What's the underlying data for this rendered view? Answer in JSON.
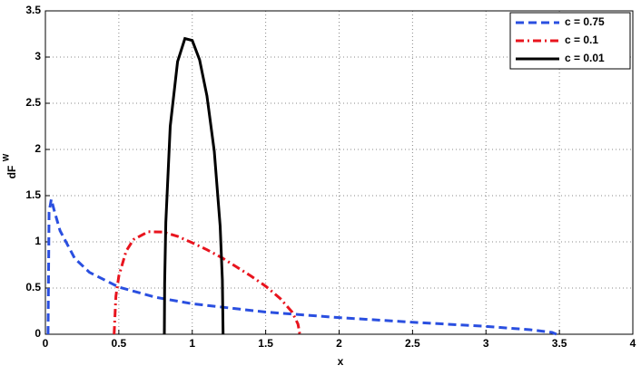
{
  "chart_data": {
    "type": "line",
    "xlabel": "x",
    "ylabel": "dF",
    "ylabel_superscript": "W",
    "xlim": [
      0,
      4
    ],
    "ylim": [
      0,
      3.5
    ],
    "xticks": [
      0,
      0.5,
      1,
      1.5,
      2,
      2.5,
      3,
      3.5,
      4
    ],
    "yticks": [
      0,
      0.5,
      1,
      1.5,
      2,
      2.5,
      3,
      3.5
    ],
    "grid": true,
    "legend": "upper right",
    "series": [
      {
        "name": "c = 0.75",
        "color": "#2a4fe0",
        "style": "dashed",
        "x": [
          0.018,
          0.025,
          0.04,
          0.06,
          0.1,
          0.2,
          0.3,
          0.5,
          0.75,
          1,
          1.5,
          2,
          2.5,
          3,
          3.3,
          3.45,
          3.48
        ],
        "values": [
          0,
          1.32,
          1.46,
          1.34,
          1.12,
          0.82,
          0.67,
          0.51,
          0.4,
          0.33,
          0.24,
          0.18,
          0.13,
          0.085,
          0.049,
          0.02,
          0
        ]
      },
      {
        "name": "c = 0.1",
        "color": "#e8141e",
        "style": "dashdot",
        "x": [
          0.468,
          0.48,
          0.5,
          0.55,
          0.6,
          0.7,
          0.8,
          0.9,
          1.0,
          1.1,
          1.2,
          1.3,
          1.4,
          1.5,
          1.6,
          1.68,
          1.72,
          1.732
        ],
        "values": [
          0,
          0.41,
          0.63,
          0.9,
          1.025,
          1.11,
          1.106,
          1.06,
          0.99,
          0.915,
          0.83,
          0.73,
          0.63,
          0.52,
          0.385,
          0.24,
          0.11,
          0
        ]
      },
      {
        "name": "c = 0.01",
        "color": "#000000",
        "style": "solid",
        "x": [
          0.81,
          0.812,
          0.82,
          0.85,
          0.9,
          0.95,
          1.0,
          1.05,
          1.1,
          1.15,
          1.19,
          1.205,
          1.21
        ],
        "values": [
          0,
          0.55,
          1.21,
          2.25,
          2.95,
          3.2,
          3.18,
          2.97,
          2.58,
          1.98,
          1.17,
          0.59,
          0
        ]
      }
    ]
  }
}
